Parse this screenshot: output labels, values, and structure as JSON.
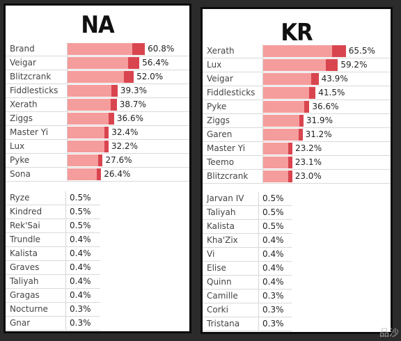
{
  "chart_data": [
    {
      "type": "bar",
      "title": "NA",
      "categories": [
        "Brand",
        "Veigar",
        "Blitzcrank",
        "Fiddlesticks",
        "Xerath",
        "Ziggs",
        "Master Yi",
        "Lux",
        "Pyke",
        "Sona"
      ],
      "values": [
        60.8,
        56.4,
        52.0,
        39.3,
        38.7,
        36.6,
        32.4,
        32.2,
        27.6,
        26.4
      ],
      "value_labels": [
        "60.8%",
        "56.4%",
        "52.0%",
        "39.3%",
        "38.7%",
        "36.6%",
        "32.4%",
        "32.2%",
        "27.6%",
        "26.4%"
      ],
      "xlim": [
        0,
        70
      ],
      "bar_color": "#f59c9c",
      "bar_end_color": "#d9454f",
      "table": {
        "names": [
          "Ryze",
          "Kindred",
          "Rek'Sai",
          "Trundle",
          "Kalista",
          "Graves",
          "Taliyah",
          "Gragas",
          "Nocturne",
          "Gnar"
        ],
        "values": [
          "0.5%",
          "0.5%",
          "0.5%",
          "0.4%",
          "0.4%",
          "0.4%",
          "0.4%",
          "0.4%",
          "0.3%",
          "0.3%"
        ]
      }
    },
    {
      "type": "bar",
      "title": "KR",
      "categories": [
        "Xerath",
        "Lux",
        "Veigar",
        "Fiddlesticks",
        "Pyke",
        "Ziggs",
        "Garen",
        "Master Yi",
        "Teemo",
        "Blitzcrank"
      ],
      "values": [
        65.5,
        59.2,
        43.9,
        41.5,
        36.6,
        31.9,
        31.2,
        23.2,
        23.1,
        23.0
      ],
      "value_labels": [
        "65.5%",
        "59.2%",
        "43.9%",
        "41.5%",
        "36.6%",
        "31.9%",
        "31.2%",
        "23.2%",
        "23.1%",
        "23.0%"
      ],
      "xlim": [
        0,
        75
      ],
      "bar_color": "#f59c9c",
      "bar_end_color": "#d9454f",
      "table": {
        "names": [
          "Jarvan IV",
          "Taliyah",
          "Kalista",
          "Kha'Zix",
          "Vi",
          "Elise",
          "Quinn",
          "Camille",
          "Corki",
          "Tristana"
        ],
        "values": [
          "0.5%",
          "0.5%",
          "0.5%",
          "0.4%",
          "0.4%",
          "0.4%",
          "0.4%",
          "0.3%",
          "0.3%",
          "0.3%"
        ]
      }
    }
  ],
  "watermark": "品沙"
}
